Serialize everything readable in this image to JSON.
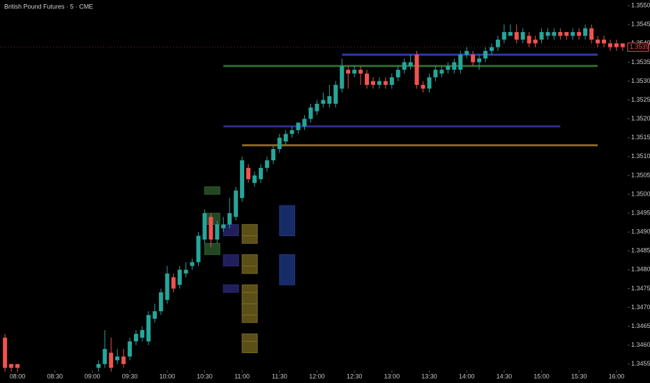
{
  "chart_data": {
    "type": "candlestick",
    "title": "British Pound Futures · 5 · CME",
    "x": [
      "07:50",
      "07:55",
      "08:00",
      "09:05",
      "09:10",
      "09:15",
      "09:20",
      "09:25",
      "09:30",
      "09:35",
      "09:40",
      "09:45",
      "09:50",
      "09:55",
      "10:00",
      "10:05",
      "10:10",
      "10:15",
      "10:20",
      "10:25",
      "10:30",
      "10:35",
      "10:40",
      "10:45",
      "10:50",
      "10:55",
      "11:00",
      "11:05",
      "11:10",
      "11:15",
      "11:20",
      "11:25",
      "11:30",
      "11:35",
      "11:40",
      "11:45",
      "11:50",
      "11:55",
      "12:00",
      "12:05",
      "12:10",
      "12:15",
      "12:20",
      "12:25",
      "12:30",
      "12:35",
      "12:40",
      "12:45",
      "12:50",
      "12:55",
      "13:00",
      "13:05",
      "13:10",
      "13:15",
      "13:20",
      "13:25",
      "13:30",
      "13:35",
      "13:40",
      "13:45",
      "13:50",
      "13:55",
      "14:00",
      "14:05",
      "14:10",
      "14:15",
      "14:20",
      "14:25",
      "14:30",
      "14:35",
      "14:40",
      "14:45",
      "14:50",
      "14:55",
      "15:00",
      "15:05",
      "15:10",
      "15:15",
      "15:20",
      "15:25",
      "15:30",
      "15:35",
      "15:40",
      "15:45",
      "15:50",
      "15:55",
      "16:00",
      "16:05"
    ],
    "open": [
      1.3462,
      1.3455,
      1.3455,
      1.3454,
      1.3455,
      1.3458,
      1.3456,
      1.3457,
      1.3457,
      1.3461,
      1.3462,
      1.3461,
      1.3467,
      1.3469,
      1.3472,
      1.3478,
      1.3476,
      1.3479,
      1.3481,
      1.3482,
      1.3488,
      1.3494,
      1.3488,
      1.3491,
      1.3492,
      1.3494,
      1.3499,
      1.3507,
      1.3503,
      1.3504,
      1.3507,
      1.3509,
      1.3512,
      1.3514,
      1.3516,
      1.3517,
      1.3518,
      1.352,
      1.3522,
      1.3524,
      1.3524,
      1.3524,
      1.3528,
      1.3533,
      1.3532,
      1.3533,
      1.3532,
      1.353,
      1.3529,
      1.353,
      1.3529,
      1.3531,
      1.3533,
      1.3534,
      1.3537,
      1.3529,
      1.3528,
      1.3531,
      1.3532,
      1.3533,
      1.3533,
      1.3533,
      1.3537,
      1.3537,
      1.3535,
      1.3536,
      1.3538,
      1.3539,
      1.3541,
      1.3542,
      1.3543,
      1.3541,
      1.3542,
      1.3541,
      1.3541,
      1.3542,
      1.3542,
      1.3543,
      1.3543,
      1.3542,
      1.3543,
      1.3542,
      1.3544,
      1.3541,
      1.3541,
      1.354,
      1.354,
      1.354
    ],
    "high": [
      1.3463,
      1.3455,
      1.3455,
      1.3456,
      1.3464,
      1.3462,
      1.3459,
      1.3459,
      1.3462,
      1.3464,
      1.3465,
      1.3469,
      1.3471,
      1.3475,
      1.3481,
      1.3479,
      1.3481,
      1.3482,
      1.3483,
      1.349,
      1.3496,
      1.3495,
      1.3493,
      1.3494,
      1.3499,
      1.3502,
      1.351,
      1.3508,
      1.3506,
      1.3508,
      1.351,
      1.3513,
      1.3516,
      1.3517,
      1.3518,
      1.3519,
      1.3521,
      1.3524,
      1.3525,
      1.3527,
      1.3529,
      1.353,
      1.3536,
      1.3534,
      1.3534,
      1.3534,
      1.3533,
      1.3531,
      1.3531,
      1.3531,
      1.3532,
      1.3534,
      1.3536,
      1.3537,
      1.3538,
      1.353,
      1.3532,
      1.3534,
      1.3534,
      1.3535,
      1.3536,
      1.3538,
      1.3539,
      1.3538,
      1.3537,
      1.3539,
      1.354,
      1.3542,
      1.3545,
      1.3545,
      1.3545,
      1.3544,
      1.3543,
      1.3542,
      1.3544,
      1.3544,
      1.3544,
      1.3544,
      1.3543,
      1.3544,
      1.3544,
      1.3545,
      1.3545,
      1.3542,
      1.3542,
      1.3541,
      1.3541,
      1.354
    ],
    "low": [
      1.3453,
      1.3453,
      1.3453,
      1.3453,
      1.3454,
      1.3453,
      1.3455,
      1.3454,
      1.3456,
      1.346,
      1.3461,
      1.346,
      1.3466,
      1.3468,
      1.3471,
      1.3474,
      1.3475,
      1.3478,
      1.348,
      1.3481,
      1.3487,
      1.3486,
      1.3487,
      1.349,
      1.3491,
      1.3493,
      1.3498,
      1.3503,
      1.3502,
      1.3503,
      1.3506,
      1.3508,
      1.3511,
      1.3513,
      1.3515,
      1.3516,
      1.3517,
      1.3519,
      1.3521,
      1.3523,
      1.3523,
      1.3523,
      1.3527,
      1.3528,
      1.3531,
      1.3529,
      1.3528,
      1.3528,
      1.3528,
      1.3528,
      1.3528,
      1.353,
      1.3532,
      1.3533,
      1.3528,
      1.3527,
      1.3527,
      1.353,
      1.3531,
      1.3532,
      1.3532,
      1.3532,
      1.3536,
      1.3534,
      1.3533,
      1.3535,
      1.3537,
      1.3538,
      1.354,
      1.3542,
      1.354,
      1.354,
      1.3539,
      1.3539,
      1.354,
      1.3541,
      1.3541,
      1.3541,
      1.3541,
      1.3541,
      1.3541,
      1.3541,
      1.354,
      1.3539,
      1.3539,
      1.3538,
      1.3538,
      1.3538
    ],
    "close": [
      1.3454,
      1.3454,
      1.3454,
      1.3455,
      1.3459,
      1.3454,
      1.3457,
      1.3455,
      1.3461,
      1.3463,
      1.3464,
      1.3468,
      1.3469,
      1.3474,
      1.3479,
      1.3475,
      1.348,
      1.348,
      1.3482,
      1.3489,
      1.3495,
      1.3488,
      1.3492,
      1.3492,
      1.3495,
      1.3501,
      1.3509,
      1.3504,
      1.3505,
      1.3507,
      1.3509,
      1.3512,
      1.3515,
      1.3516,
      1.3517,
      1.3519,
      1.352,
      1.3523,
      1.3524,
      1.3525,
      1.3526,
      1.3529,
      1.3534,
      1.3532,
      1.3533,
      1.3532,
      1.3529,
      1.3529,
      1.353,
      1.3529,
      1.3531,
      1.3533,
      1.3535,
      1.3535,
      1.3529,
      1.3528,
      1.3531,
      1.3533,
      1.3533,
      1.3534,
      1.3535,
      1.3537,
      1.3538,
      1.3535,
      1.3536,
      1.3538,
      1.3539,
      1.3541,
      1.3543,
      1.3543,
      1.3541,
      1.3543,
      1.354,
      1.354,
      1.3543,
      1.3543,
      1.3543,
      1.3542,
      1.3542,
      1.3543,
      1.3542,
      1.3544,
      1.3541,
      1.354,
      1.354,
      1.3539,
      1.3539,
      1.3539
    ],
    "up_color": "#26a69a",
    "down_color": "#ef5350",
    "levels": [
      {
        "price": 1.3537,
        "start": "12:20",
        "end": "15:45",
        "color": "#2b3a9c"
      },
      {
        "price": 1.3534,
        "start": "10:45",
        "end": "15:45",
        "color": "#2f6a2f"
      },
      {
        "price": 1.3518,
        "start": "10:45",
        "end": "15:15",
        "color": "#2c2a8c"
      },
      {
        "price": 1.3513,
        "start": "11:00",
        "end": "15:45",
        "color": "#8a6a1a"
      }
    ],
    "zones": [
      {
        "start": "10:30",
        "end": "10:40",
        "top": 1.3502,
        "bottom": 1.35,
        "color": "#2f5e2f"
      },
      {
        "start": "10:30",
        "end": "10:40",
        "top": 1.3495,
        "bottom": 1.3492,
        "color": "#2f5e2f"
      },
      {
        "start": "10:30",
        "end": "10:40",
        "top": 1.3487,
        "bottom": 1.3484,
        "color": "#2f5e2f"
      },
      {
        "start": "10:45",
        "end": "10:55",
        "top": 1.3492,
        "bottom": 1.3489,
        "color": "#2c2a7a"
      },
      {
        "start": "10:45",
        "end": "10:55",
        "top": 1.3484,
        "bottom": 1.3481,
        "color": "#2c2a7a"
      },
      {
        "start": "10:45",
        "end": "10:55",
        "top": 1.3476,
        "bottom": 1.3474,
        "color": "#2c2a7a"
      },
      {
        "start": "11:00",
        "end": "11:10",
        "top": 1.3492,
        "bottom": 1.3489,
        "color": "#7a6a20"
      },
      {
        "start": "11:00",
        "end": "11:10",
        "top": 1.3489,
        "bottom": 1.3487,
        "color": "#7a6a20"
      },
      {
        "start": "11:00",
        "end": "11:10",
        "top": 1.3484,
        "bottom": 1.3481,
        "color": "#7a6a20"
      },
      {
        "start": "11:00",
        "end": "11:10",
        "top": 1.3481,
        "bottom": 1.3479,
        "color": "#7a6a20"
      },
      {
        "start": "11:00",
        "end": "11:10",
        "top": 1.3476,
        "bottom": 1.3474,
        "color": "#7a6a20"
      },
      {
        "start": "11:00",
        "end": "11:10",
        "top": 1.3474,
        "bottom": 1.3471,
        "color": "#7a6a20"
      },
      {
        "start": "11:00",
        "end": "11:10",
        "top": 1.3471,
        "bottom": 1.3468,
        "color": "#7a6a20"
      },
      {
        "start": "11:00",
        "end": "11:10",
        "top": 1.3468,
        "bottom": 1.3466,
        "color": "#7a6a20"
      },
      {
        "start": "11:00",
        "end": "11:10",
        "top": 1.3463,
        "bottom": 1.3461,
        "color": "#7a6a20"
      },
      {
        "start": "11:00",
        "end": "11:10",
        "top": 1.3461,
        "bottom": 1.3458,
        "color": "#7a6a20"
      },
      {
        "start": "11:30",
        "end": "11:40",
        "top": 1.3497,
        "bottom": 1.3489,
        "color": "#1e3a8a"
      },
      {
        "start": "11:30",
        "end": "11:40",
        "top": 1.3484,
        "bottom": 1.3476,
        "color": "#1e3a8a"
      }
    ],
    "last_price": 1.3539,
    "ylim": [
      1.34533,
      1.35515
    ],
    "yticks": [
      1.3455,
      {
        "value": 1.346,
        "label": "1.3460"
      },
      1.3465,
      {
        "value": 1.347,
        "label": "1.3470"
      },
      1.3475,
      {
        "value": 1.348,
        "label": "1.3480"
      },
      1.3485,
      {
        "value": 1.349,
        "label": "1.3490"
      },
      1.3495,
      {
        "value": 1.35,
        "label": "1.3500"
      },
      1.3505,
      {
        "value": 1.351,
        "label": "1.3510"
      },
      1.3515,
      {
        "value": 1.352,
        "label": "1.3520"
      },
      1.3525,
      {
        "value": 1.353,
        "label": "1.3530"
      },
      1.3535,
      {
        "value": 1.354,
        "label": "1.3540"
      },
      1.3545,
      {
        "value": 1.355,
        "label": "1.3550"
      }
    ],
    "xlim": [
      "07:46",
      "16:09"
    ],
    "xticks": [
      "08:00",
      "08:30",
      "09:00",
      "09:30",
      "10:00",
      "10:30",
      "11:00",
      "11:30",
      "12:00",
      "12:30",
      "13:00",
      "13:30",
      "14:00",
      "14:30",
      "15:00",
      "15:30",
      "16:00"
    ],
    "grid": false
  }
}
